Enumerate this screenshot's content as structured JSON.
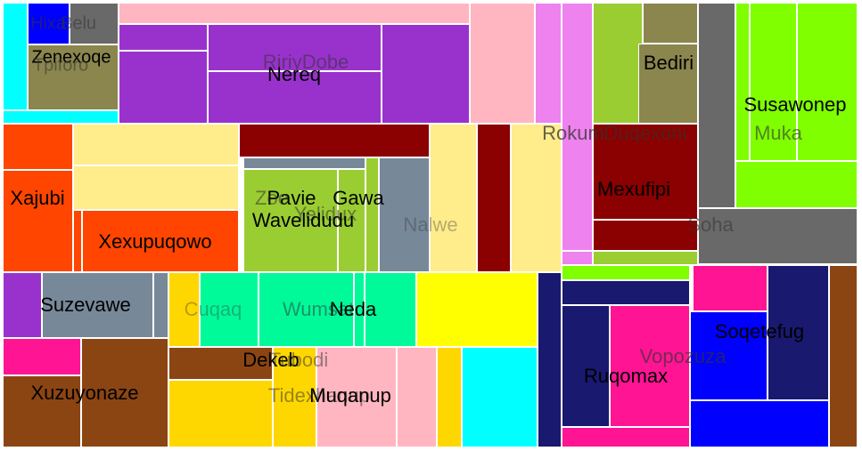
{
  "chart_data": {
    "type": "treemap",
    "title": "",
    "labels_shown": [
      "Hixa",
      "Belu",
      "Zenexoqe",
      "Tpiforo",
      "RiriyDobe",
      "Nereq",
      "Bediri",
      "Susawonep",
      "Muka",
      "Rokum",
      "Duqexoni",
      "Mexufipi",
      "Soha",
      "Xajubi",
      "Pavie",
      "Gawa",
      "Zoe",
      "Yelidux",
      "Wavelidudu",
      "Nalwe",
      "Xexupuqowo",
      "Suzevawe",
      "Cuqaq",
      "Wumsat",
      "Neda",
      "Dekeb",
      "Tubodi",
      "Tidexhanup",
      "Muqanup",
      "Xuzuyonaze",
      "Ruqomax",
      "Vopozuza",
      "Soqetefug"
    ]
  },
  "tiles": [
    {
      "c": "#00FFFF"
    },
    {
      "c": "#0000FF"
    },
    {
      "c": "#696969"
    },
    {
      "c": "#8B864E"
    },
    {
      "c": "#00FFFF"
    },
    {
      "c": "#FFB6C1"
    },
    {
      "c": "#9932CC"
    },
    {
      "c": "#9932CC"
    },
    {
      "c": "#9932CC"
    },
    {
      "c": "#9932CC"
    },
    {
      "c": "#9932CC"
    },
    {
      "c": "#9932CC"
    },
    {
      "c": "#FFB6C1"
    },
    {
      "c": "#EE82EE"
    },
    {
      "c": "#EE82EE"
    },
    {
      "c": "#EE82EE"
    },
    {
      "c": "#9ACD32"
    },
    {
      "c": "#8B864E"
    },
    {
      "c": "#8B864E"
    },
    {
      "c": "#9ACD32"
    },
    {
      "c": "#696969"
    },
    {
      "c": "#7FFF00"
    },
    {
      "c": "#7FFF00"
    },
    {
      "c": "#7FFF00"
    },
    {
      "c": "#7FFF00"
    },
    {
      "c": "#8B0000"
    },
    {
      "c": "#8B0000"
    },
    {
      "c": "#9ACD32"
    },
    {
      "c": "#696969"
    },
    {
      "c": "#FF4500"
    },
    {
      "c": "#FF4500"
    },
    {
      "c": "#FFEC8B"
    },
    {
      "c": "#FFEC8B"
    },
    {
      "c": "#FF4500"
    },
    {
      "c": "#FF4500"
    },
    {
      "c": "#8B0000"
    },
    {
      "c": "#778899"
    },
    {
      "c": "#9ACD32"
    },
    {
      "c": "#9ACD32"
    },
    {
      "c": "#9ACD32"
    },
    {
      "c": "#778899"
    },
    {
      "c": "#FFEC8B"
    },
    {
      "c": "#8B0000"
    },
    {
      "c": "#FFEC8B"
    },
    {
      "c": "#9932CC"
    },
    {
      "c": "#778899"
    },
    {
      "c": "#778899"
    },
    {
      "c": "#FFD700"
    },
    {
      "c": "#00FA9A"
    },
    {
      "c": "#00FA9A"
    },
    {
      "c": "#00FA9A"
    },
    {
      "c": "#00FA9A"
    },
    {
      "c": "#FFFF00"
    },
    {
      "c": "#FF1493"
    },
    {
      "c": "#8B4513"
    },
    {
      "c": "#8B4513"
    },
    {
      "c": "#8B4513"
    },
    {
      "c": "#FFD700"
    },
    {
      "c": "#FFD700"
    },
    {
      "c": "#FFB6C1"
    },
    {
      "c": "#FFB6C1"
    },
    {
      "c": "#FFD700"
    },
    {
      "c": "#00FFFF"
    },
    {
      "c": "#191970"
    },
    {
      "c": "#7FFF00"
    },
    {
      "c": "#191970"
    },
    {
      "c": "#191970"
    },
    {
      "c": "#FF1493"
    },
    {
      "c": "#FF1493"
    },
    {
      "c": "#FF1493"
    },
    {
      "c": "#0000FF"
    },
    {
      "c": "#0000FF"
    },
    {
      "c": "#191970"
    },
    {
      "c": "#8B4513"
    },
    {
      "c": "#FF0000"
    }
  ],
  "labels": [
    {
      "t": "Hixa",
      "col": "#333333",
      "o": 0.55
    },
    {
      "t": "Belu",
      "col": "#333333",
      "o": 0.55
    },
    {
      "t": "Zenexoqe",
      "col": "#000000",
      "o": 1
    },
    {
      "t": "Tpiforo",
      "col": "#333333",
      "o": 0.55
    },
    {
      "t": "RiriyDobe",
      "col": "#333333",
      "o": 0.55
    },
    {
      "t": "Nereq",
      "col": "#000000",
      "o": 1
    },
    {
      "t": "Bediri",
      "col": "#000000",
      "o": 1
    },
    {
      "t": "Susawonep",
      "col": "#000000",
      "o": 1
    },
    {
      "t": "Muka",
      "col": "#333333",
      "o": 0.6
    },
    {
      "t": "Rokum",
      "col": "#333333",
      "o": 0.75
    },
    {
      "t": "Duqexoni",
      "col": "#333333",
      "o": 0.6
    },
    {
      "t": "Mexufipi",
      "col": "#000000",
      "o": 1
    },
    {
      "t": "Soha",
      "col": "#333333",
      "o": 0.55
    },
    {
      "t": "Xajubi",
      "col": "#000000",
      "o": 1
    },
    {
      "t": "Pavie",
      "col": "#000000",
      "o": 1
    },
    {
      "t": "Gawa",
      "col": "#000000",
      "o": 1
    },
    {
      "t": "Zoe",
      "col": "#333333",
      "o": 0.55
    },
    {
      "t": "Yelidux",
      "col": "#333333",
      "o": 0.55
    },
    {
      "t": "Wavelidudu",
      "col": "#000000",
      "o": 1
    },
    {
      "t": "Nalwe",
      "col": "#333333",
      "o": 0.35
    },
    {
      "t": "Xexupuqowo",
      "col": "#000000",
      "o": 1
    },
    {
      "t": "Suzevawe",
      "col": "#000000",
      "o": 1
    },
    {
      "t": "Cuqaq",
      "col": "#333333",
      "o": 0.35
    },
    {
      "t": "Wumsat",
      "col": "#333333",
      "o": 0.5
    },
    {
      "t": "Neda",
      "col": "#000000",
      "o": 1
    },
    {
      "t": "Dekeb",
      "col": "#000000",
      "o": 1
    },
    {
      "t": "Tubodi",
      "col": "#333333",
      "o": 0.5
    },
    {
      "t": "Tidexhanup",
      "col": "#333333",
      "o": 0.5
    },
    {
      "t": "Muqanup",
      "col": "#000000",
      "o": 1
    },
    {
      "t": "Xuzuyonaze",
      "col": "#000000",
      "o": 1
    },
    {
      "t": "Ruqomax",
      "col": "#000000",
      "o": 1
    },
    {
      "t": "Vopozuza",
      "col": "#333333",
      "o": 0.65
    },
    {
      "t": "Soqetefug",
      "col": "#000000",
      "o": 1
    }
  ]
}
